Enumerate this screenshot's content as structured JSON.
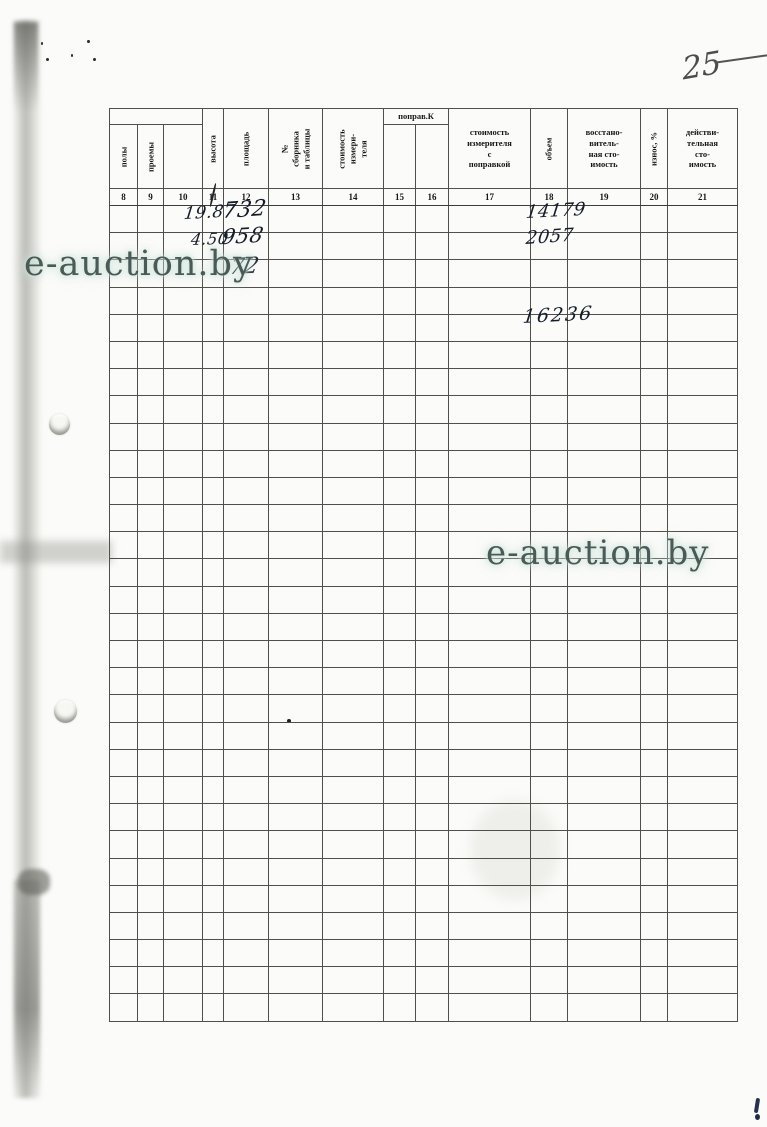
{
  "page": {
    "handwritten_page_number": "25",
    "watermark_1": "e-auction.by",
    "watermark_2": "e-auction.by",
    "colors": {
      "paper": "#fbfbf9",
      "grid_line": "#504f4a",
      "handwriting_ink": "#151d2b",
      "watermark_text": "#4a5a57",
      "watermark_halo": "#cde3db"
    }
  },
  "table": {
    "headers": {
      "col8": "полы",
      "col9": "проемы",
      "col10": "",
      "col11": "высота",
      "col12": "площадь",
      "col13": "№\nсборника\nи таблицы",
      "col14": "стоимость\nизмери-\nтеля",
      "col15_16": "поправ.К",
      "col17": "стоимость\nизмерителя\nс\nпоправкой",
      "col18": "объем",
      "col19": "восстано-\nвитель-\nная сто-\nимость",
      "col20": "износ, %",
      "col21": "действи-\nтельная\nсто-\nимость"
    },
    "column_numbers": [
      "8",
      "9",
      "10",
      "11",
      "12",
      "13",
      "14",
      "15",
      "16",
      "17",
      "18",
      "19",
      "20",
      "21"
    ],
    "body_row_count": 30,
    "handwritten_entries": [
      {
        "column": "высота (11)",
        "row": 1,
        "value": "19.87"
      },
      {
        "column": "площадь (12)",
        "row": 1,
        "value": "732"
      },
      {
        "column": "высота (11)",
        "row": 2,
        "value": "4.50"
      },
      {
        "column": "площадь (12)",
        "row": 2,
        "value": "958"
      },
      {
        "column": "площадь (12)",
        "row": 3,
        "value": "72"
      },
      {
        "column": "объем (18)",
        "row": 1,
        "value": "14179"
      },
      {
        "column": "объем (18)",
        "row": 2,
        "value": "2057"
      },
      {
        "column": "объем (18)",
        "row": 5,
        "value": "16236"
      }
    ]
  }
}
